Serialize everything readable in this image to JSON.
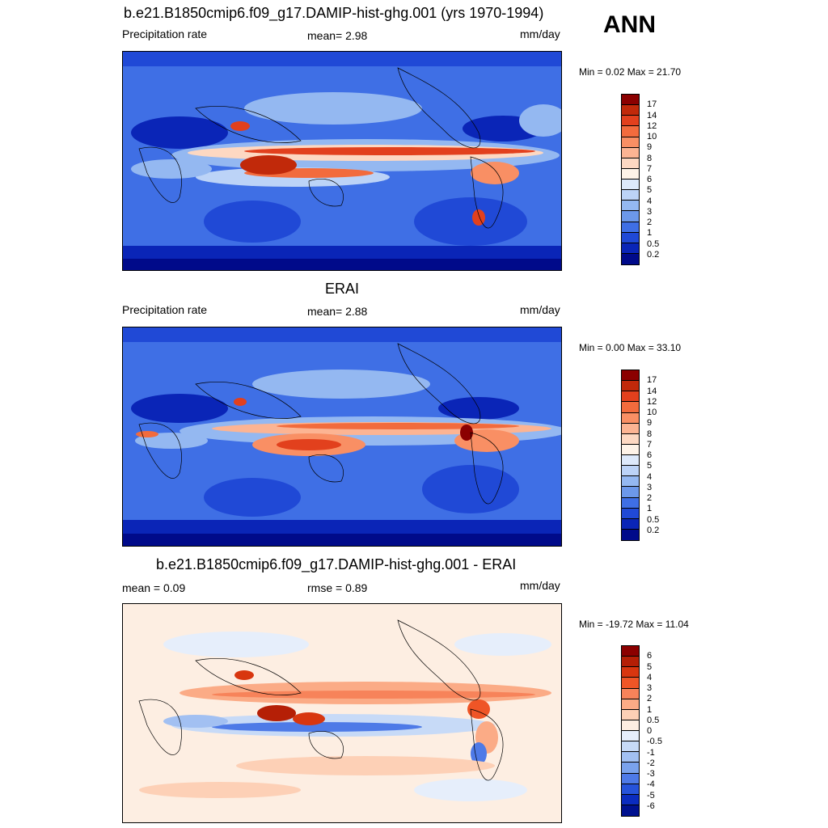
{
  "season": "ANN",
  "panels": [
    {
      "title": "b.e21.B1850cmip6.f09_g17.DAMIP-hist-ghg.001 (yrs 1970-1994)",
      "left_label": "Precipitation rate",
      "center_label": "mean=   2.98",
      "units": "mm/day",
      "minmax": "Min =   0.02 Max =  21.70",
      "colorbar": {
        "labels": [
          "17",
          "14",
          "12",
          "10",
          "9",
          "8",
          "7",
          "6",
          "5",
          "4",
          "3",
          "2",
          "1",
          "0.5",
          "0.2"
        ],
        "colors": [
          "#8b0000",
          "#c1290a",
          "#e2401d",
          "#f26b3d",
          "#f98f64",
          "#fcb493",
          "#fdd8c2",
          "#fef3e8",
          "#dde9fb",
          "#bcd3f7",
          "#94b8f1",
          "#6c98ea",
          "#3f6fe5",
          "#2049d6",
          "#0a25b7",
          "#000a8a"
        ]
      },
      "stats": {
        "mean": 2.98,
        "min": 0.02,
        "max": 21.7
      }
    },
    {
      "title": "ERAI",
      "left_label": "Precipitation rate",
      "center_label": "mean=   2.88",
      "units": "mm/day",
      "minmax": "Min =   0.00 Max =  33.10",
      "colorbar": {
        "labels": [
          "17",
          "14",
          "12",
          "10",
          "9",
          "8",
          "7",
          "6",
          "5",
          "4",
          "3",
          "2",
          "1",
          "0.5",
          "0.2"
        ],
        "colors": [
          "#8b0000",
          "#c1290a",
          "#e2401d",
          "#f26b3d",
          "#f98f64",
          "#fcb493",
          "#fdd8c2",
          "#fef3e8",
          "#dde9fb",
          "#bcd3f7",
          "#94b8f1",
          "#6c98ea",
          "#3f6fe5",
          "#2049d6",
          "#0a25b7",
          "#000a8a"
        ]
      },
      "stats": {
        "mean": 2.88,
        "min": 0.0,
        "max": 33.1
      }
    },
    {
      "title": "b.e21.B1850cmip6.f09_g17.DAMIP-hist-ghg.001 - ERAI",
      "left_label": "mean =   0.09",
      "center_label": "rmse =   0.89",
      "units": "mm/day",
      "minmax": "Min = -19.72 Max =  11.04",
      "colorbar": {
        "labels": [
          "6",
          "5",
          "4",
          "3",
          "2",
          "1",
          "0.5",
          "0",
          "-0.5",
          "-1",
          "-2",
          "-3",
          "-4",
          "-5",
          "-6"
        ],
        "colors": [
          "#8b0000",
          "#b51f06",
          "#d8360f",
          "#ef5526",
          "#f7835a",
          "#fbab86",
          "#fdd0b6",
          "#fdeee2",
          "#e6eefb",
          "#c7daf7",
          "#a2c0f2",
          "#7aa2ec",
          "#4e7ae7",
          "#2653da",
          "#0b2cbf",
          "#00118f"
        ]
      },
      "stats": {
        "mean": 0.09,
        "rmse": 0.89,
        "min": -19.72,
        "max": 11.04
      }
    }
  ]
}
